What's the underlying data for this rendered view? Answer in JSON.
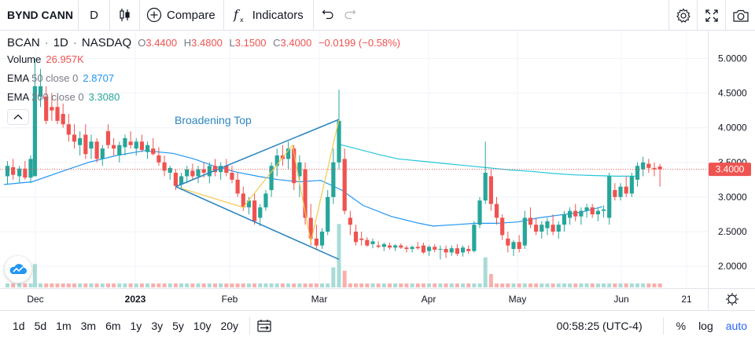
{
  "toolbar": {
    "symbol": "BYND CANN",
    "interval": "D",
    "compare_label": "Compare",
    "indicators_label": "Indicators"
  },
  "legend": {
    "symbol": "BCAN",
    "interval": "1D",
    "exchange": "NASDAQ",
    "o_label": "O",
    "o": "3.4400",
    "h_label": "H",
    "h": "3.4800",
    "l_label": "L",
    "l": "3.1500",
    "c_label": "C",
    "c": "3.4000",
    "change": "−0.0199 (−0.58%)",
    "volume_label": "Volume",
    "volume": "26.957K",
    "ema50_label": "EMA",
    "ema50_params": "50 close 0",
    "ema50_value": "2.8707",
    "ema200_label": "EMA",
    "ema200_params": "200 close 0",
    "ema200_value": "3.3080"
  },
  "chart_data": {
    "type": "candlestick",
    "annotation": "Broadening Top",
    "last_price": "3.4000",
    "y_axis_ticks": [
      "5.0000",
      "4.5000",
      "4.0000",
      "3.5000",
      "3.0000",
      "2.5000",
      "2.0000"
    ],
    "y_axis_values": [
      5.0,
      4.5,
      4.0,
      3.5,
      3.0,
      2.5,
      2.0
    ],
    "ylim": [
      1.6,
      5.4
    ],
    "x_axis_ticks": [
      "Dec",
      "2023",
      "Feb",
      "Mar",
      "Apr",
      "May",
      "Jun",
      "21"
    ],
    "series": [
      {
        "name": "EMA 200",
        "values": [
          [
            4.77,
            3.76
          ],
          [
            5.0,
            3.7
          ],
          [
            5.3,
            3.62
          ],
          [
            5.6,
            3.55
          ],
          [
            6.0,
            3.51
          ],
          [
            6.3,
            3.48
          ],
          [
            6.6,
            3.45
          ],
          [
            6.9,
            3.42
          ],
          [
            7.2,
            3.39
          ],
          [
            7.5,
            3.37
          ],
          [
            7.8,
            3.34
          ],
          [
            8.1,
            3.32
          ],
          [
            8.4,
            3.31
          ],
          [
            8.7,
            3.3
          ],
          [
            9.0,
            3.3
          ]
        ]
      },
      {
        "name": "EMA 50",
        "values": [
          [
            0,
            3.18
          ],
          [
            0.4,
            3.22
          ],
          [
            0.8,
            3.36
          ],
          [
            1.2,
            3.5
          ],
          [
            1.6,
            3.6
          ],
          [
            2.0,
            3.67
          ],
          [
            2.4,
            3.63
          ],
          [
            2.7,
            3.55
          ],
          [
            3.0,
            3.44
          ],
          [
            3.3,
            3.36
          ],
          [
            3.6,
            3.3
          ],
          [
            3.9,
            3.25
          ],
          [
            4.2,
            3.22
          ],
          [
            4.5,
            3.24
          ],
          [
            4.8,
            3.1
          ],
          [
            5.1,
            2.88
          ],
          [
            5.5,
            2.72
          ],
          [
            5.9,
            2.62
          ],
          [
            6.1,
            2.58
          ],
          [
            6.4,
            2.6
          ],
          [
            6.7,
            2.62
          ],
          [
            7.0,
            2.62
          ],
          [
            7.3,
            2.64
          ],
          [
            7.6,
            2.7
          ],
          [
            7.9,
            2.74
          ],
          [
            8.2,
            2.78
          ],
          [
            8.5,
            2.86
          ]
        ]
      }
    ],
    "candles": [
      {
        "x": 0.05,
        "o": 3.3,
        "h": 3.52,
        "l": 3.18,
        "c": 3.45
      },
      {
        "x": 0.13,
        "o": 3.43,
        "h": 3.55,
        "l": 3.25,
        "c": 3.32
      },
      {
        "x": 0.22,
        "o": 3.3,
        "h": 3.45,
        "l": 3.2,
        "c": 3.41
      },
      {
        "x": 0.3,
        "o": 3.41,
        "h": 3.52,
        "l": 3.25,
        "c": 3.28
      },
      {
        "x": 0.38,
        "o": 3.28,
        "h": 3.6,
        "l": 3.2,
        "c": 3.55
      },
      {
        "x": 0.44,
        "o": 3.3,
        "h": 5.0,
        "l": 3.3,
        "c": 4.6
      },
      {
        "x": 0.52,
        "o": 4.45,
        "h": 4.85,
        "l": 4.3,
        "c": 4.6
      },
      {
        "x": 0.6,
        "o": 4.45,
        "h": 4.6,
        "l": 4.05,
        "c": 4.1
      },
      {
        "x": 0.68,
        "o": 4.3,
        "h": 4.5,
        "l": 4.1,
        "c": 4.25
      },
      {
        "x": 0.76,
        "o": 4.3,
        "h": 4.45,
        "l": 4.05,
        "c": 4.1
      },
      {
        "x": 0.84,
        "o": 4.2,
        "h": 4.35,
        "l": 4.0,
        "c": 4.05
      },
      {
        "x": 0.92,
        "o": 4.05,
        "h": 4.2,
        "l": 3.8,
        "c": 3.9
      },
      {
        "x": 1.0,
        "o": 3.9,
        "h": 4.05,
        "l": 3.7,
        "c": 3.8
      },
      {
        "x": 1.08,
        "o": 3.75,
        "h": 3.95,
        "l": 3.6,
        "c": 3.85
      },
      {
        "x": 1.16,
        "o": 3.9,
        "h": 4.05,
        "l": 3.55,
        "c": 3.62
      },
      {
        "x": 1.24,
        "o": 3.7,
        "h": 3.9,
        "l": 3.55,
        "c": 3.8
      },
      {
        "x": 1.32,
        "o": 3.8,
        "h": 3.85,
        "l": 3.5,
        "c": 3.55
      },
      {
        "x": 1.4,
        "o": 3.55,
        "h": 3.75,
        "l": 3.45,
        "c": 3.7
      },
      {
        "x": 1.48,
        "o": 3.95,
        "h": 4.05,
        "l": 3.7,
        "c": 3.75
      },
      {
        "x": 1.56,
        "o": 3.75,
        "h": 3.85,
        "l": 3.6,
        "c": 3.7
      },
      {
        "x": 1.64,
        "o": 3.6,
        "h": 3.8,
        "l": 3.5,
        "c": 3.75
      },
      {
        "x": 1.72,
        "o": 3.72,
        "h": 3.9,
        "l": 3.6,
        "c": 3.85
      },
      {
        "x": 1.8,
        "o": 3.8,
        "h": 3.95,
        "l": 3.7,
        "c": 3.75
      },
      {
        "x": 1.88,
        "o": 3.7,
        "h": 3.85,
        "l": 3.6,
        "c": 3.8
      },
      {
        "x": 1.96,
        "o": 3.8,
        "h": 3.9,
        "l": 3.65,
        "c": 3.68
      },
      {
        "x": 2.04,
        "o": 3.65,
        "h": 3.8,
        "l": 3.55,
        "c": 3.75
      },
      {
        "x": 2.12,
        "o": 3.7,
        "h": 3.85,
        "l": 3.6,
        "c": 3.62
      },
      {
        "x": 2.2,
        "o": 3.6,
        "h": 3.72,
        "l": 3.45,
        "c": 3.5
      },
      {
        "x": 2.28,
        "o": 3.5,
        "h": 3.6,
        "l": 3.3,
        "c": 3.38
      },
      {
        "x": 2.36,
        "o": 3.35,
        "h": 3.45,
        "l": 3.25,
        "c": 3.42
      },
      {
        "x": 2.44,
        "o": 3.35,
        "h": 3.4,
        "l": 3.1,
        "c": 3.16
      },
      {
        "x": 2.52,
        "o": 3.18,
        "h": 3.35,
        "l": 3.1,
        "c": 3.3
      },
      {
        "x": 2.6,
        "o": 3.3,
        "h": 3.45,
        "l": 3.2,
        "c": 3.4
      },
      {
        "x": 2.68,
        "o": 3.38,
        "h": 3.48,
        "l": 3.25,
        "c": 3.3
      },
      {
        "x": 2.76,
        "o": 3.3,
        "h": 3.45,
        "l": 3.2,
        "c": 3.4
      },
      {
        "x": 2.84,
        "o": 3.4,
        "h": 3.5,
        "l": 3.28,
        "c": 3.35
      },
      {
        "x": 2.92,
        "o": 3.3,
        "h": 3.5,
        "l": 3.2,
        "c": 3.45
      },
      {
        "x": 3.0,
        "o": 3.45,
        "h": 3.55,
        "l": 3.3,
        "c": 3.36
      },
      {
        "x": 3.08,
        "o": 3.36,
        "h": 3.5,
        "l": 3.25,
        "c": 3.45
      },
      {
        "x": 3.16,
        "o": 3.45,
        "h": 3.55,
        "l": 3.3,
        "c": 3.35
      },
      {
        "x": 3.24,
        "o": 3.35,
        "h": 3.45,
        "l": 3.2,
        "c": 3.25
      },
      {
        "x": 3.32,
        "o": 3.25,
        "h": 3.35,
        "l": 3.0,
        "c": 3.05
      },
      {
        "x": 3.4,
        "o": 3.05,
        "h": 3.15,
        "l": 2.8,
        "c": 2.85
      },
      {
        "x": 3.48,
        "o": 2.85,
        "h": 3.0,
        "l": 2.75,
        "c": 2.95
      },
      {
        "x": 3.56,
        "o": 2.95,
        "h": 3.05,
        "l": 2.6,
        "c": 2.65
      },
      {
        "x": 3.64,
        "o": 2.7,
        "h": 2.9,
        "l": 2.58,
        "c": 2.85
      },
      {
        "x": 3.72,
        "o": 2.85,
        "h": 3.1,
        "l": 2.8,
        "c": 3.05
      },
      {
        "x": 3.8,
        "o": 3.1,
        "h": 3.5,
        "l": 3.0,
        "c": 3.45
      },
      {
        "x": 3.88,
        "o": 3.45,
        "h": 3.7,
        "l": 3.3,
        "c": 3.6
      },
      {
        "x": 3.96,
        "o": 3.6,
        "h": 3.75,
        "l": 3.45,
        "c": 3.55
      },
      {
        "x": 4.04,
        "o": 3.55,
        "h": 3.8,
        "l": 3.4,
        "c": 3.7
      },
      {
        "x": 4.12,
        "o": 3.7,
        "h": 3.75,
        "l": 3.1,
        "c": 3.2
      },
      {
        "x": 4.2,
        "o": 3.3,
        "h": 3.6,
        "l": 3.0,
        "c": 3.5
      },
      {
        "x": 4.28,
        "o": 3.4,
        "h": 3.5,
        "l": 2.6,
        "c": 2.7
      },
      {
        "x": 4.36,
        "o": 2.7,
        "h": 2.9,
        "l": 2.3,
        "c": 2.4
      },
      {
        "x": 4.44,
        "o": 2.4,
        "h": 2.6,
        "l": 2.25,
        "c": 2.3
      },
      {
        "x": 4.52,
        "o": 2.3,
        "h": 2.55,
        "l": 2.25,
        "c": 2.5
      },
      {
        "x": 4.6,
        "o": 2.5,
        "h": 3.1,
        "l": 2.45,
        "c": 3.0
      },
      {
        "x": 4.68,
        "o": 3.0,
        "h": 3.7,
        "l": 2.9,
        "c": 3.5
      },
      {
        "x": 4.76,
        "o": 3.5,
        "h": 4.55,
        "l": 3.4,
        "c": 4.1
      },
      {
        "x": 4.84,
        "o": 3.55,
        "h": 3.7,
        "l": 2.75,
        "c": 2.8
      },
      {
        "x": 4.92,
        "o": 2.7,
        "h": 2.8,
        "l": 2.45,
        "c": 2.6
      },
      {
        "x": 5.0,
        "o": 2.5,
        "h": 2.6,
        "l": 2.3,
        "c": 2.35
      },
      {
        "x": 5.08,
        "o": 2.4,
        "h": 2.5,
        "l": 2.3,
        "c": 2.38
      },
      {
        "x": 5.16,
        "o": 2.38,
        "h": 2.42,
        "l": 2.28,
        "c": 2.3
      },
      {
        "x": 5.24,
        "o": 2.32,
        "h": 2.4,
        "l": 2.26,
        "c": 2.36
      },
      {
        "x": 5.32,
        "o": 2.3,
        "h": 2.36,
        "l": 2.26,
        "c": 2.28
      },
      {
        "x": 5.4,
        "o": 2.28,
        "h": 2.34,
        "l": 2.22,
        "c": 2.32
      },
      {
        "x": 5.48,
        "o": 2.3,
        "h": 2.34,
        "l": 2.24,
        "c": 2.27
      },
      {
        "x": 5.56,
        "o": 2.27,
        "h": 2.32,
        "l": 2.22,
        "c": 2.3
      },
      {
        "x": 5.64,
        "o": 2.3,
        "h": 2.33,
        "l": 2.25,
        "c": 2.27
      },
      {
        "x": 5.72,
        "o": 2.27,
        "h": 2.3,
        "l": 2.2,
        "c": 2.25
      },
      {
        "x": 5.8,
        "o": 2.25,
        "h": 2.3,
        "l": 2.2,
        "c": 2.28
      },
      {
        "x": 5.88,
        "o": 2.28,
        "h": 2.35,
        "l": 2.24,
        "c": 2.26
      },
      {
        "x": 5.96,
        "o": 2.3,
        "h": 2.34,
        "l": 2.18,
        "c": 2.2
      },
      {
        "x": 6.04,
        "o": 2.22,
        "h": 2.3,
        "l": 2.15,
        "c": 2.28
      },
      {
        "x": 6.12,
        "o": 2.28,
        "h": 2.32,
        "l": 2.2,
        "c": 2.24
      },
      {
        "x": 6.2,
        "o": 2.24,
        "h": 2.3,
        "l": 2.1,
        "c": 2.25
      },
      {
        "x": 6.28,
        "o": 2.25,
        "h": 2.3,
        "l": 2.12,
        "c": 2.2
      },
      {
        "x": 6.36,
        "o": 2.2,
        "h": 2.3,
        "l": 2.15,
        "c": 2.26
      },
      {
        "x": 6.44,
        "o": 2.26,
        "h": 2.32,
        "l": 2.15,
        "c": 2.18
      },
      {
        "x": 6.52,
        "o": 2.2,
        "h": 2.3,
        "l": 2.14,
        "c": 2.27
      },
      {
        "x": 6.6,
        "o": 2.25,
        "h": 2.3,
        "l": 2.18,
        "c": 2.22
      },
      {
        "x": 6.68,
        "o": 2.22,
        "h": 2.65,
        "l": 2.2,
        "c": 2.6
      },
      {
        "x": 6.76,
        "o": 2.6,
        "h": 3.0,
        "l": 2.55,
        "c": 2.95
      },
      {
        "x": 6.84,
        "o": 2.95,
        "h": 3.8,
        "l": 2.9,
        "c": 3.35
      },
      {
        "x": 6.92,
        "o": 3.3,
        "h": 3.4,
        "l": 2.8,
        "c": 2.9
      },
      {
        "x": 7.0,
        "o": 2.9,
        "h": 3.0,
        "l": 2.6,
        "c": 2.7
      },
      {
        "x": 7.08,
        "o": 2.7,
        "h": 2.75,
        "l": 2.38,
        "c": 2.45
      },
      {
        "x": 7.16,
        "o": 2.4,
        "h": 2.5,
        "l": 2.2,
        "c": 2.3
      },
      {
        "x": 7.24,
        "o": 2.25,
        "h": 2.38,
        "l": 2.15,
        "c": 2.35
      },
      {
        "x": 7.32,
        "o": 2.35,
        "h": 2.45,
        "l": 2.2,
        "c": 2.25
      },
      {
        "x": 7.4,
        "o": 2.3,
        "h": 2.8,
        "l": 2.25,
        "c": 2.7
      },
      {
        "x": 7.48,
        "o": 2.7,
        "h": 2.85,
        "l": 2.55,
        "c": 2.6
      },
      {
        "x": 7.56,
        "o": 2.6,
        "h": 2.7,
        "l": 2.45,
        "c": 2.5
      },
      {
        "x": 7.64,
        "o": 2.5,
        "h": 2.65,
        "l": 2.4,
        "c": 2.6
      },
      {
        "x": 7.72,
        "o": 2.55,
        "h": 2.7,
        "l": 2.45,
        "c": 2.65
      },
      {
        "x": 7.8,
        "o": 2.6,
        "h": 2.75,
        "l": 2.45,
        "c": 2.5
      },
      {
        "x": 7.88,
        "o": 2.5,
        "h": 2.65,
        "l": 2.4,
        "c": 2.6
      },
      {
        "x": 7.96,
        "o": 2.6,
        "h": 2.8,
        "l": 2.5,
        "c": 2.75
      },
      {
        "x": 8.04,
        "o": 2.7,
        "h": 2.85,
        "l": 2.6,
        "c": 2.8
      },
      {
        "x": 8.12,
        "o": 2.8,
        "h": 2.9,
        "l": 2.65,
        "c": 2.72
      },
      {
        "x": 8.2,
        "o": 2.72,
        "h": 2.85,
        "l": 2.6,
        "c": 2.8
      },
      {
        "x": 8.28,
        "o": 2.8,
        "h": 2.9,
        "l": 2.7,
        "c": 2.85
      },
      {
        "x": 8.36,
        "o": 2.85,
        "h": 2.9,
        "l": 2.7,
        "c": 2.75
      },
      {
        "x": 8.44,
        "o": 2.75,
        "h": 2.85,
        "l": 2.65,
        "c": 2.8
      },
      {
        "x": 8.52,
        "o": 2.8,
        "h": 2.88,
        "l": 2.7,
        "c": 2.82
      },
      {
        "x": 8.6,
        "o": 2.7,
        "h": 3.35,
        "l": 2.6,
        "c": 3.3
      },
      {
        "x": 8.68,
        "o": 3.1,
        "h": 3.2,
        "l": 2.95,
        "c": 3.0
      },
      {
        "x": 8.76,
        "o": 3.0,
        "h": 3.2,
        "l": 2.95,
        "c": 3.15
      },
      {
        "x": 8.84,
        "o": 3.15,
        "h": 3.3,
        "l": 3.0,
        "c": 3.05
      },
      {
        "x": 8.92,
        "o": 3.05,
        "h": 3.35,
        "l": 3.0,
        "c": 3.3
      },
      {
        "x": 9.0,
        "o": 3.25,
        "h": 3.5,
        "l": 3.15,
        "c": 3.45
      },
      {
        "x": 9.08,
        "o": 3.4,
        "h": 3.58,
        "l": 3.3,
        "c": 3.5
      },
      {
        "x": 9.16,
        "o": 3.48,
        "h": 3.55,
        "l": 3.35,
        "c": 3.42
      },
      {
        "x": 9.24,
        "o": 3.42,
        "h": 3.5,
        "l": 3.3,
        "c": 3.4
      },
      {
        "x": 9.32,
        "o": 3.44,
        "h": 3.48,
        "l": 3.15,
        "c": 3.4
      }
    ],
    "volumes": [
      {
        "x": 0.44,
        "v": 0.35
      },
      {
        "x": 4.76,
        "v": 0.95
      },
      {
        "x": 4.68,
        "v": 0.3
      },
      {
        "x": 4.84,
        "v": 0.25
      },
      {
        "x": 6.84,
        "v": 0.45
      },
      {
        "x": 6.92,
        "v": 0.2
      }
    ],
    "pattern": {
      "upper": [
        [
          2.44,
          3.15
        ],
        [
          4.76,
          4.12
        ]
      ],
      "lower": [
        [
          2.44,
          3.15
        ],
        [
          4.76,
          2.1
        ]
      ],
      "zigzag": [
        [
          2.44,
          3.15
        ],
        [
          3.4,
          2.85
        ],
        [
          4.1,
          3.75
        ],
        [
          4.36,
          2.35
        ],
        [
          4.76,
          4.12
        ]
      ]
    }
  },
  "bottombar": {
    "ranges": [
      "1d",
      "5d",
      "1m",
      "3m",
      "6m",
      "1y",
      "3y",
      "5y",
      "10y",
      "20y"
    ],
    "time": "00:58:25 (UTC-4)",
    "percent": "%",
    "log": "log",
    "auto": "auto"
  },
  "colors": {
    "up": "#26a69a",
    "down": "#ef5350",
    "ema50": "#2196f3",
    "ema200": "#26c6da",
    "pattern": "#2e86c1",
    "zigzag": "#f2c94c"
  }
}
